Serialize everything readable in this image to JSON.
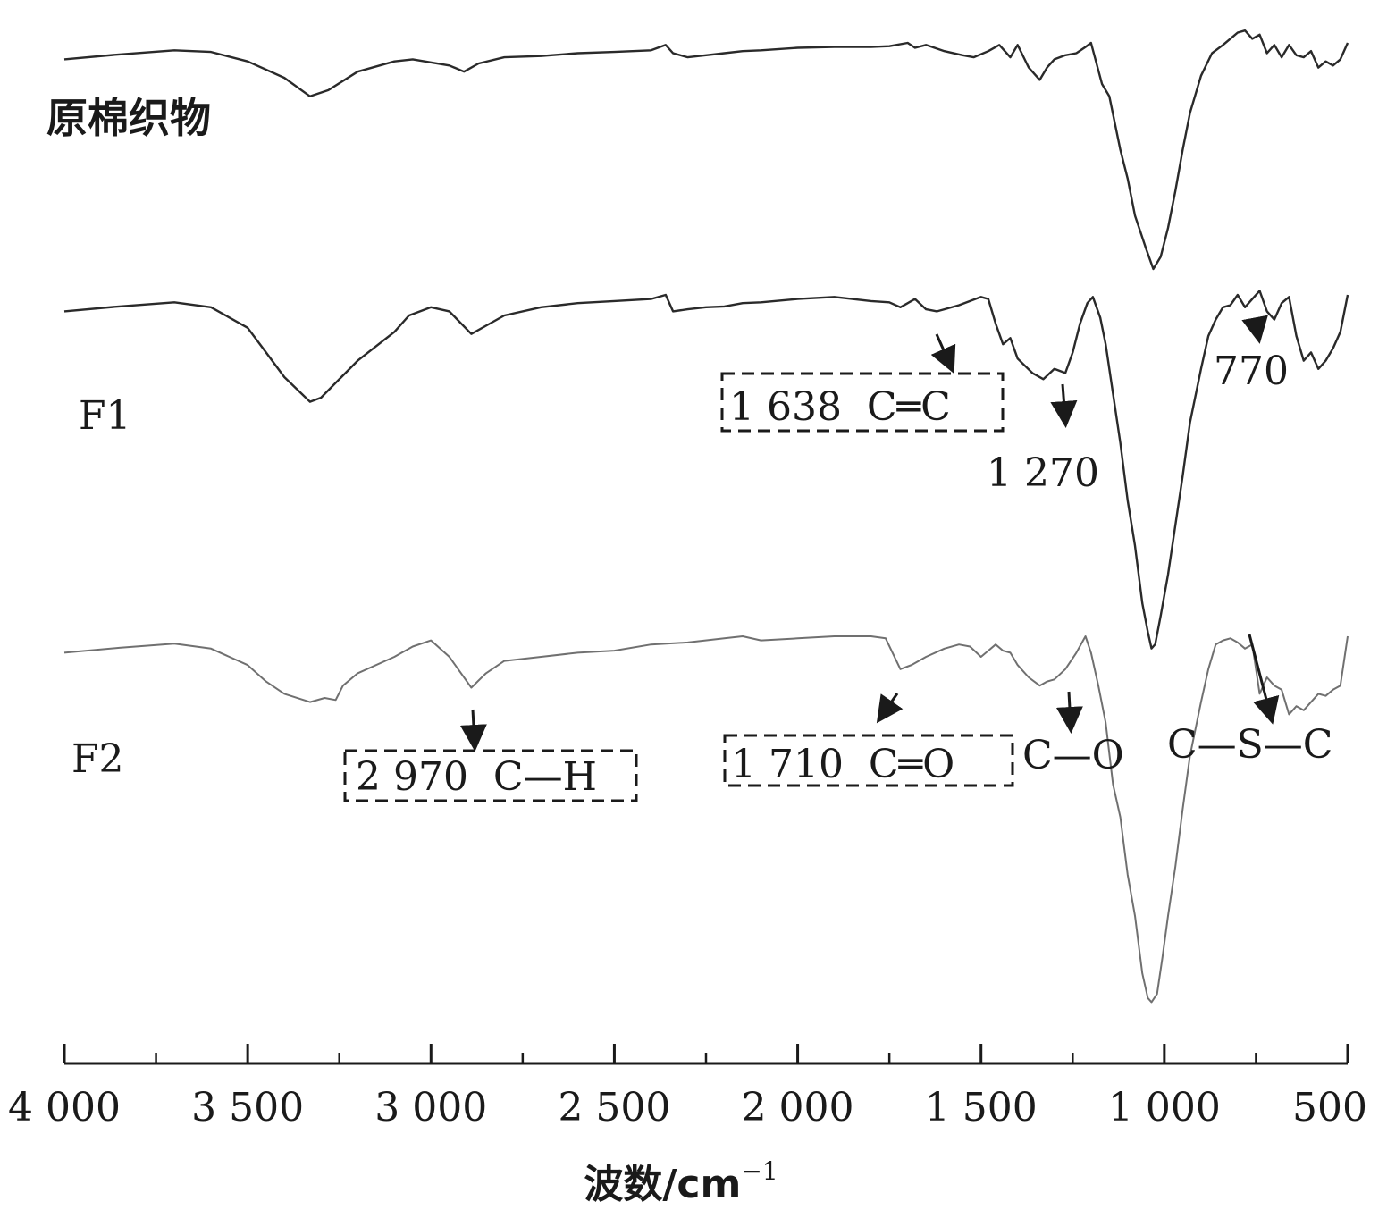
{
  "chart_data": {
    "type": "line",
    "title": "",
    "xlabel": "波数/cm",
    "xlabel_superscript": "−1",
    "ylabel": "",
    "xlim": [
      4000,
      500
    ],
    "x_reversed": true,
    "x_ticks": [
      {
        "value": 4000,
        "label": "4 000"
      },
      {
        "value": 3500,
        "label": "3 500"
      },
      {
        "value": 3000,
        "label": "3 000"
      },
      {
        "value": 2500,
        "label": "2 500"
      },
      {
        "value": 2000,
        "label": "2 000"
      },
      {
        "value": 1500,
        "label": "1 500"
      },
      {
        "value": 1000,
        "label": "1 000"
      },
      {
        "value": 500,
        "label": "500"
      }
    ],
    "x_minor_ticks": [
      3750,
      3250,
      2750,
      2250,
      1750,
      1250,
      750
    ],
    "y_axis_shown": false,
    "grid": false,
    "legend": "none",
    "series": [
      {
        "name": "原棉织物",
        "color": "#2a2a2a",
        "points": [
          [
            4000,
            0.4
          ],
          [
            3850,
            0.28
          ],
          [
            3700,
            0.18
          ],
          [
            3600,
            0.22
          ],
          [
            3500,
            0.45
          ],
          [
            3400,
            0.85
          ],
          [
            3330,
            1.3
          ],
          [
            3280,
            1.15
          ],
          [
            3200,
            0.7
          ],
          [
            3100,
            0.45
          ],
          [
            3050,
            0.4
          ],
          [
            2950,
            0.55
          ],
          [
            2910,
            0.7
          ],
          [
            2870,
            0.5
          ],
          [
            2800,
            0.35
          ],
          [
            2700,
            0.32
          ],
          [
            2600,
            0.25
          ],
          [
            2500,
            0.22
          ],
          [
            2450,
            0.2
          ],
          [
            2400,
            0.18
          ],
          [
            2360,
            0.05
          ],
          [
            2340,
            0.25
          ],
          [
            2300,
            0.35
          ],
          [
            2250,
            0.3
          ],
          [
            2200,
            0.25
          ],
          [
            2150,
            0.2
          ],
          [
            2100,
            0.18
          ],
          [
            2000,
            0.12
          ],
          [
            1900,
            0.1
          ],
          [
            1800,
            0.1
          ],
          [
            1750,
            0.08
          ],
          [
            1700,
            0.0
          ],
          [
            1680,
            0.12
          ],
          [
            1650,
            0.05
          ],
          [
            1600,
            0.2
          ],
          [
            1550,
            0.3
          ],
          [
            1520,
            0.35
          ],
          [
            1480,
            0.2
          ],
          [
            1450,
            0.05
          ],
          [
            1420,
            0.35
          ],
          [
            1400,
            0.05
          ],
          [
            1370,
            0.6
          ],
          [
            1340,
            0.9
          ],
          [
            1320,
            0.6
          ],
          [
            1300,
            0.4
          ],
          [
            1270,
            0.3
          ],
          [
            1240,
            0.25
          ],
          [
            1215,
            0.1
          ],
          [
            1200,
            0.0
          ],
          [
            1170,
            1.0
          ],
          [
            1150,
            1.3
          ],
          [
            1120,
            2.6
          ],
          [
            1100,
            3.3
          ],
          [
            1080,
            4.2
          ],
          [
            1050,
            5.0
          ],
          [
            1030,
            5.5
          ],
          [
            1010,
            5.2
          ],
          [
            990,
            4.5
          ],
          [
            970,
            3.6
          ],
          [
            950,
            2.6
          ],
          [
            930,
            1.7
          ],
          [
            900,
            0.8
          ],
          [
            870,
            0.25
          ],
          [
            840,
            0.05
          ],
          [
            820,
            -0.1
          ],
          [
            800,
            -0.25
          ],
          [
            780,
            -0.3
          ],
          [
            760,
            -0.1
          ],
          [
            740,
            -0.2
          ],
          [
            720,
            0.25
          ],
          [
            700,
            0.05
          ],
          [
            680,
            0.35
          ],
          [
            660,
            0.05
          ],
          [
            640,
            0.3
          ],
          [
            620,
            0.35
          ],
          [
            600,
            0.2
          ],
          [
            580,
            0.6
          ],
          [
            560,
            0.45
          ],
          [
            540,
            0.55
          ],
          [
            520,
            0.4
          ],
          [
            500,
            0.0
          ]
        ]
      },
      {
        "name": "F1",
        "color": "#2a2a2a",
        "points": [
          [
            4000,
            0.4
          ],
          [
            3850,
            0.28
          ],
          [
            3700,
            0.18
          ],
          [
            3600,
            0.3
          ],
          [
            3500,
            0.8
          ],
          [
            3450,
            1.4
          ],
          [
            3400,
            2.0
          ],
          [
            3330,
            2.6
          ],
          [
            3300,
            2.5
          ],
          [
            3200,
            1.6
          ],
          [
            3100,
            0.9
          ],
          [
            3060,
            0.5
          ],
          [
            3000,
            0.3
          ],
          [
            2950,
            0.4
          ],
          [
            2890,
            0.95
          ],
          [
            2850,
            0.75
          ],
          [
            2800,
            0.5
          ],
          [
            2700,
            0.3
          ],
          [
            2600,
            0.2
          ],
          [
            2500,
            0.15
          ],
          [
            2400,
            0.1
          ],
          [
            2360,
            0.0
          ],
          [
            2340,
            0.4
          ],
          [
            2300,
            0.35
          ],
          [
            2250,
            0.3
          ],
          [
            2200,
            0.28
          ],
          [
            2150,
            0.2
          ],
          [
            2100,
            0.18
          ],
          [
            2000,
            0.1
          ],
          [
            1900,
            0.05
          ],
          [
            1800,
            0.15
          ],
          [
            1750,
            0.18
          ],
          [
            1720,
            0.3
          ],
          [
            1680,
            0.1
          ],
          [
            1650,
            0.35
          ],
          [
            1620,
            0.4
          ],
          [
            1600,
            0.35
          ],
          [
            1560,
            0.25
          ],
          [
            1530,
            0.15
          ],
          [
            1500,
            0.05
          ],
          [
            1480,
            0.1
          ],
          [
            1460,
            0.7
          ],
          [
            1440,
            1.2
          ],
          [
            1420,
            1.05
          ],
          [
            1400,
            1.55
          ],
          [
            1360,
            1.9
          ],
          [
            1330,
            2.05
          ],
          [
            1300,
            1.8
          ],
          [
            1270,
            1.9
          ],
          [
            1250,
            1.4
          ],
          [
            1230,
            0.7
          ],
          [
            1210,
            0.2
          ],
          [
            1195,
            0.05
          ],
          [
            1175,
            0.55
          ],
          [
            1160,
            1.2
          ],
          [
            1140,
            2.4
          ],
          [
            1120,
            3.6
          ],
          [
            1100,
            5.0
          ],
          [
            1080,
            6.1
          ],
          [
            1060,
            7.5
          ],
          [
            1045,
            8.2
          ],
          [
            1035,
            8.6
          ],
          [
            1025,
            8.5
          ],
          [
            1010,
            7.8
          ],
          [
            990,
            6.8
          ],
          [
            970,
            5.6
          ],
          [
            950,
            4.4
          ],
          [
            930,
            3.1
          ],
          [
            900,
            1.8
          ],
          [
            880,
            1.0
          ],
          [
            860,
            0.6
          ],
          [
            840,
            0.3
          ],
          [
            820,
            0.25
          ],
          [
            800,
            0.0
          ],
          [
            780,
            0.3
          ],
          [
            760,
            0.1
          ],
          [
            740,
            -0.1
          ],
          [
            720,
            0.4
          ],
          [
            700,
            0.6
          ],
          [
            680,
            0.2
          ],
          [
            660,
            0.05
          ],
          [
            640,
            1.0
          ],
          [
            620,
            1.6
          ],
          [
            600,
            1.4
          ],
          [
            580,
            1.8
          ],
          [
            560,
            1.6
          ],
          [
            540,
            1.3
          ],
          [
            520,
            0.9
          ],
          [
            500,
            0.0
          ]
        ]
      },
      {
        "name": "F2",
        "color": "#707070",
        "points": [
          [
            4000,
            0.4
          ],
          [
            3850,
            0.28
          ],
          [
            3700,
            0.18
          ],
          [
            3600,
            0.3
          ],
          [
            3500,
            0.7
          ],
          [
            3450,
            1.1
          ],
          [
            3400,
            1.4
          ],
          [
            3330,
            1.6
          ],
          [
            3290,
            1.5
          ],
          [
            3260,
            1.55
          ],
          [
            3240,
            1.2
          ],
          [
            3200,
            0.9
          ],
          [
            3100,
            0.5
          ],
          [
            3050,
            0.25
          ],
          [
            3000,
            0.1
          ],
          [
            2950,
            0.5
          ],
          [
            2890,
            1.25
          ],
          [
            2850,
            0.9
          ],
          [
            2800,
            0.6
          ],
          [
            2700,
            0.5
          ],
          [
            2600,
            0.4
          ],
          [
            2500,
            0.35
          ],
          [
            2400,
            0.2
          ],
          [
            2300,
            0.15
          ],
          [
            2200,
            0.05
          ],
          [
            2150,
            0.0
          ],
          [
            2100,
            0.1
          ],
          [
            2000,
            0.05
          ],
          [
            1900,
            0.0
          ],
          [
            1800,
            0.0
          ],
          [
            1760,
            0.05
          ],
          [
            1720,
            0.8
          ],
          [
            1690,
            0.7
          ],
          [
            1650,
            0.5
          ],
          [
            1600,
            0.3
          ],
          [
            1560,
            0.2
          ],
          [
            1530,
            0.25
          ],
          [
            1500,
            0.5
          ],
          [
            1480,
            0.35
          ],
          [
            1460,
            0.2
          ],
          [
            1440,
            0.35
          ],
          [
            1420,
            0.4
          ],
          [
            1400,
            0.7
          ],
          [
            1370,
            1.0
          ],
          [
            1340,
            1.2
          ],
          [
            1320,
            1.1
          ],
          [
            1300,
            1.05
          ],
          [
            1270,
            0.8
          ],
          [
            1240,
            0.4
          ],
          [
            1215,
            0.0
          ],
          [
            1200,
            0.4
          ],
          [
            1180,
            1.2
          ],
          [
            1160,
            2.1
          ],
          [
            1140,
            3.6
          ],
          [
            1120,
            4.4
          ],
          [
            1100,
            5.8
          ],
          [
            1080,
            6.8
          ],
          [
            1060,
            8.2
          ],
          [
            1045,
            8.8
          ],
          [
            1035,
            8.9
          ],
          [
            1020,
            8.7
          ],
          [
            1005,
            7.8
          ],
          [
            990,
            6.8
          ],
          [
            970,
            5.6
          ],
          [
            950,
            4.2
          ],
          [
            930,
            2.9
          ],
          [
            900,
            1.6
          ],
          [
            880,
            0.8
          ],
          [
            860,
            0.2
          ],
          [
            840,
            0.1
          ],
          [
            820,
            0.05
          ],
          [
            800,
            0.15
          ],
          [
            780,
            0.3
          ],
          [
            760,
            0.2
          ],
          [
            740,
            1.4
          ],
          [
            720,
            1.0
          ],
          [
            700,
            1.2
          ],
          [
            680,
            1.3
          ],
          [
            660,
            1.9
          ],
          [
            640,
            1.7
          ],
          [
            620,
            1.8
          ],
          [
            600,
            1.6
          ],
          [
            580,
            1.4
          ],
          [
            560,
            1.45
          ],
          [
            540,
            1.3
          ],
          [
            520,
            1.2
          ],
          [
            500,
            0.0
          ]
        ]
      }
    ],
    "annotations": [
      {
        "text": "1 638  C═C",
        "boxed": true
      },
      {
        "text": "1 270",
        "boxed": false
      },
      {
        "text": "770",
        "boxed": false
      },
      {
        "text": "2 970  C—H",
        "boxed": true
      },
      {
        "text": "1 710  C═O",
        "boxed": true
      },
      {
        "text": "C—O",
        "boxed": false
      },
      {
        "text": "C—S—C",
        "boxed": false
      }
    ]
  }
}
